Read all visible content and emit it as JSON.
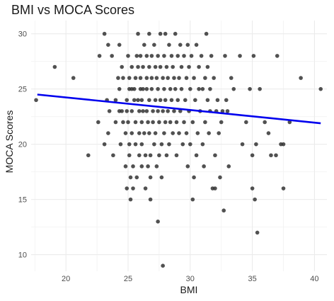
{
  "chart_data": {
    "type": "scatter",
    "title": "BMI vs MOCA Scores",
    "xlabel": "BMI",
    "ylabel": "MOCA Scores",
    "xlim": [
      17.2,
      41.0
    ],
    "ylim": [
      8.5,
      31.2
    ],
    "x_ticks": [
      20,
      25,
      30,
      35,
      40
    ],
    "y_ticks": [
      10,
      15,
      20,
      25,
      30
    ],
    "grid": true,
    "point_color": "#333333",
    "trend_color": "#0000ee",
    "trend_line": {
      "x": [
        17.7,
        40.5
      ],
      "y": [
        24.5,
        21.9
      ]
    },
    "points": [
      [
        17.6,
        24
      ],
      [
        19.1,
        27
      ],
      [
        20.6,
        26
      ],
      [
        21.8,
        19
      ],
      [
        22.6,
        22
      ],
      [
        22.7,
        28
      ],
      [
        23.1,
        30
      ],
      [
        23.3,
        24
      ],
      [
        23.4,
        29
      ],
      [
        23.5,
        23
      ],
      [
        23.1,
        20
      ],
      [
        23.4,
        21
      ],
      [
        23.8,
        19
      ],
      [
        23.7,
        28
      ],
      [
        24.0,
        24
      ],
      [
        24.0,
        22
      ],
      [
        24.2,
        26
      ],
      [
        24.3,
        29
      ],
      [
        24.3,
        25
      ],
      [
        24.3,
        23
      ],
      [
        24.4,
        20
      ],
      [
        24.5,
        27
      ],
      [
        24.6,
        26
      ],
      [
        24.5,
        23
      ],
      [
        24.6,
        22
      ],
      [
        24.8,
        21
      ],
      [
        24.9,
        24
      ],
      [
        24.9,
        23
      ],
      [
        24.8,
        18
      ],
      [
        24.9,
        16
      ],
      [
        25.0,
        28
      ],
      [
        25.1,
        26
      ],
      [
        25.1,
        25
      ],
      [
        25.0,
        22
      ],
      [
        25.1,
        20
      ],
      [
        25.1,
        19
      ],
      [
        25.2,
        17
      ],
      [
        25.2,
        15
      ],
      [
        25.3,
        27
      ],
      [
        25.3,
        25
      ],
      [
        25.3,
        23
      ],
      [
        25.3,
        21
      ],
      [
        25.4,
        18
      ],
      [
        25.4,
        16
      ],
      [
        25.5,
        25
      ],
      [
        25.5,
        24
      ],
      [
        25.6,
        26
      ],
      [
        25.6,
        22
      ],
      [
        25.7,
        28
      ],
      [
        25.6,
        20
      ],
      [
        25.7,
        17
      ],
      [
        25.8,
        30
      ],
      [
        25.8,
        27
      ],
      [
        25.8,
        24
      ],
      [
        25.9,
        23
      ],
      [
        25.9,
        21
      ],
      [
        25.9,
        19
      ],
      [
        26.0,
        28
      ],
      [
        26.0,
        26
      ],
      [
        26.0,
        25
      ],
      [
        26.1,
        24
      ],
      [
        26.1,
        22
      ],
      [
        26.1,
        20
      ],
      [
        26.1,
        18
      ],
      [
        26.2,
        27
      ],
      [
        26.2,
        25
      ],
      [
        26.2,
        23
      ],
      [
        26.3,
        29
      ],
      [
        26.3,
        21
      ],
      [
        26.4,
        19
      ],
      [
        26.4,
        16
      ],
      [
        26.5,
        28
      ],
      [
        26.5,
        26
      ],
      [
        26.5,
        25
      ],
      [
        26.5,
        23
      ],
      [
        26.6,
        22
      ],
      [
        26.6,
        18
      ],
      [
        26.7,
        30
      ],
      [
        26.7,
        27
      ],
      [
        26.7,
        24
      ],
      [
        26.7,
        21
      ],
      [
        26.8,
        19
      ],
      [
        26.8,
        17
      ],
      [
        26.8,
        15
      ],
      [
        26.9,
        28
      ],
      [
        26.9,
        26
      ],
      [
        26.9,
        25
      ],
      [
        27.0,
        23
      ],
      [
        27.0,
        22
      ],
      [
        27.1,
        20
      ],
      [
        27.1,
        29
      ],
      [
        27.2,
        27
      ],
      [
        27.2,
        24
      ],
      [
        27.2,
        21
      ],
      [
        27.3,
        18
      ],
      [
        27.3,
        26
      ],
      [
        27.4,
        28
      ],
      [
        27.4,
        25
      ],
      [
        27.4,
        23
      ],
      [
        27.4,
        13
      ],
      [
        27.5,
        22
      ],
      [
        27.5,
        19
      ],
      [
        27.6,
        30
      ],
      [
        27.6,
        27
      ],
      [
        27.6,
        24
      ],
      [
        27.7,
        20
      ],
      [
        27.7,
        17
      ],
      [
        27.8,
        26
      ],
      [
        27.8,
        23
      ],
      [
        27.8,
        9
      ],
      [
        27.9,
        28
      ],
      [
        27.9,
        25
      ],
      [
        27.9,
        21
      ],
      [
        28.0,
        30
      ],
      [
        28.0,
        24
      ],
      [
        28.0,
        22
      ],
      [
        28.1,
        19
      ],
      [
        28.1,
        27
      ],
      [
        28.2,
        26
      ],
      [
        28.2,
        23
      ],
      [
        28.3,
        29
      ],
      [
        28.3,
        20
      ],
      [
        28.4,
        25
      ],
      [
        28.4,
        22
      ],
      [
        28.5,
        28
      ],
      [
        28.5,
        24
      ],
      [
        28.6,
        27
      ],
      [
        28.6,
        21
      ],
      [
        28.7,
        26
      ],
      [
        28.7,
        23
      ],
      [
        28.8,
        30
      ],
      [
        28.8,
        25
      ],
      [
        28.9,
        22
      ],
      [
        28.9,
        19
      ],
      [
        29.0,
        28
      ],
      [
        29.0,
        24
      ],
      [
        29.1,
        26
      ],
      [
        29.1,
        21
      ],
      [
        29.2,
        29
      ],
      [
        29.2,
        23
      ],
      [
        29.3,
        27
      ],
      [
        29.3,
        25
      ],
      [
        29.4,
        20
      ],
      [
        29.5,
        28
      ],
      [
        29.5,
        22
      ],
      [
        29.6,
        24
      ],
      [
        29.7,
        26
      ],
      [
        29.7,
        21
      ],
      [
        29.8,
        29
      ],
      [
        29.8,
        18
      ],
      [
        29.9,
        27
      ],
      [
        29.9,
        23
      ],
      [
        30.0,
        25
      ],
      [
        30.0,
        20
      ],
      [
        30.1,
        28
      ],
      [
        30.2,
        15
      ],
      [
        30.2,
        22
      ],
      [
        30.3,
        26
      ],
      [
        30.3,
        17
      ],
      [
        30.4,
        24
      ],
      [
        30.5,
        29
      ],
      [
        30.5,
        19
      ],
      [
        30.6,
        21
      ],
      [
        30.7,
        25
      ],
      [
        30.7,
        27
      ],
      [
        30.8,
        23
      ],
      [
        30.9,
        28
      ],
      [
        31.0,
        20
      ],
      [
        31.0,
        25
      ],
      [
        31.1,
        18
      ],
      [
        31.2,
        26
      ],
      [
        31.2,
        22
      ],
      [
        31.3,
        30
      ],
      [
        31.4,
        24
      ],
      [
        31.4,
        27
      ],
      [
        31.5,
        21
      ],
      [
        31.6,
        25
      ],
      [
        31.6,
        23
      ],
      [
        31.7,
        28
      ],
      [
        31.8,
        16
      ],
      [
        31.9,
        26
      ],
      [
        32.0,
        16
      ],
      [
        32.0,
        19
      ],
      [
        32.1,
        23
      ],
      [
        32.2,
        24
      ],
      [
        32.3,
        21
      ],
      [
        32.4,
        17
      ],
      [
        32.5,
        22
      ],
      [
        32.6,
        23
      ],
      [
        32.7,
        14
      ],
      [
        32.8,
        28
      ],
      [
        32.9,
        24
      ],
      [
        33.0,
        23
      ],
      [
        33.1,
        18
      ],
      [
        33.3,
        26
      ],
      [
        33.5,
        25
      ],
      [
        34.0,
        28
      ],
      [
        34.2,
        20
      ],
      [
        34.5,
        22
      ],
      [
        34.8,
        25
      ],
      [
        35.0,
        19
      ],
      [
        35.0,
        16
      ],
      [
        35.1,
        28
      ],
      [
        35.2,
        15
      ],
      [
        35.3,
        20
      ],
      [
        35.4,
        12
      ],
      [
        35.6,
        25
      ],
      [
        36.0,
        22
      ],
      [
        36.3,
        21
      ],
      [
        36.5,
        19
      ],
      [
        36.9,
        19
      ],
      [
        37.0,
        28
      ],
      [
        37.3,
        20
      ],
      [
        37.5,
        20
      ],
      [
        37.5,
        16
      ],
      [
        38.0,
        22
      ],
      [
        38.9,
        26
      ],
      [
        40.5,
        25
      ]
    ]
  }
}
